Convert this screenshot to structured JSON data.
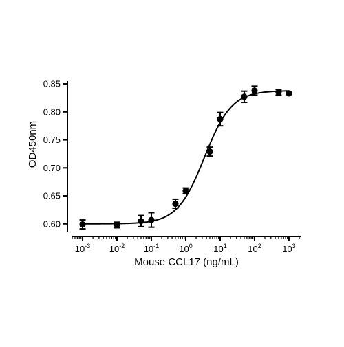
{
  "chart_data": {
    "type": "scatter",
    "title": "",
    "xlabel": "Mouse CCL17 (ng/mL)",
    "ylabel": "OD450nm",
    "x_scale": "log",
    "x_range": [
      0.0005,
      2000
    ],
    "y_range": [
      0.585,
      0.855
    ],
    "x_ticks": [
      {
        "value": 0.001,
        "base": "10",
        "exp": "-3"
      },
      {
        "value": 0.01,
        "base": "10",
        "exp": "-2"
      },
      {
        "value": 0.1,
        "base": "10",
        "exp": "-1"
      },
      {
        "value": 1,
        "base": "10",
        "exp": "0"
      },
      {
        "value": 10,
        "base": "10",
        "exp": "1"
      },
      {
        "value": 100,
        "base": "10",
        "exp": "2"
      },
      {
        "value": 1000,
        "base": "10",
        "exp": "3"
      }
    ],
    "y_ticks": [
      {
        "value": 0.6,
        "label": "0.60"
      },
      {
        "value": 0.65,
        "label": "0.65"
      },
      {
        "value": 0.7,
        "label": "0.70"
      },
      {
        "value": 0.75,
        "label": "0.75"
      },
      {
        "value": 0.8,
        "label": "0.80"
      },
      {
        "value": 0.85,
        "label": "0.85"
      }
    ],
    "points": [
      {
        "x": 0.001,
        "y": 0.599,
        "err": 0.008
      },
      {
        "x": 0.01,
        "y": 0.598,
        "err": 0.005
      },
      {
        "x": 0.05,
        "y": 0.605,
        "err": 0.01
      },
      {
        "x": 0.1,
        "y": 0.607,
        "err": 0.013
      },
      {
        "x": 0.5,
        "y": 0.636,
        "err": 0.008
      },
      {
        "x": 1,
        "y": 0.659,
        "err": 0.005
      },
      {
        "x": 5,
        "y": 0.729,
        "err": 0.008
      },
      {
        "x": 10,
        "y": 0.787,
        "err": 0.012
      },
      {
        "x": 50,
        "y": 0.827,
        "err": 0.01
      },
      {
        "x": 100,
        "y": 0.838,
        "err": 0.008
      },
      {
        "x": 500,
        "y": 0.835,
        "err": 0.005
      },
      {
        "x": 1000,
        "y": 0.833,
        "err": 0.002
      }
    ],
    "fit": {
      "bottom": 0.6,
      "top": 0.838,
      "ec50": 3.5,
      "hill": 1.1
    }
  }
}
